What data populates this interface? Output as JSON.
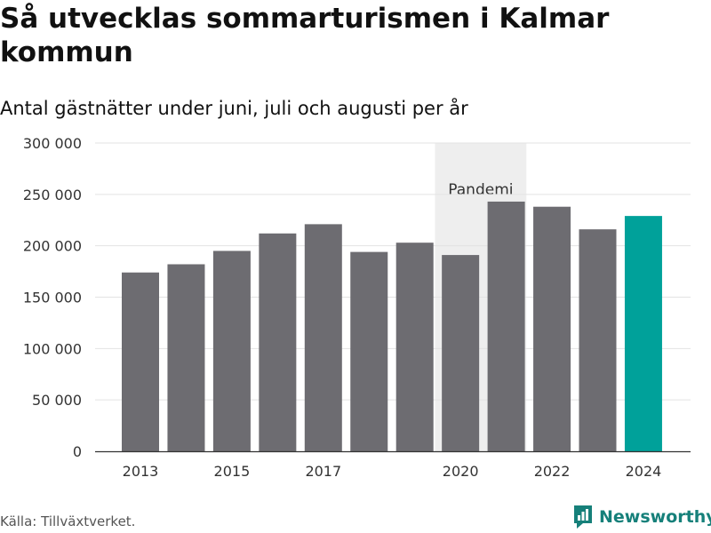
{
  "header": {
    "title": "Så utvecklas sommarturismen i Kalmar kommun",
    "subtitle": "Antal gästnätter under juni, juli och augusti per år"
  },
  "chart_data": {
    "type": "bar",
    "title": "Så utvecklas sommarturismen i Kalmar kommun",
    "subtitle": "Antal gästnätter under juni, juli och augusti per år",
    "categories": [
      "2013",
      "2014",
      "2015",
      "2016",
      "2017",
      "2018",
      "2019",
      "2020",
      "2021",
      "2022",
      "2023",
      "2024"
    ],
    "values": [
      174000,
      182000,
      195000,
      212000,
      221000,
      194000,
      203000,
      191000,
      243000,
      238000,
      216000,
      229000
    ],
    "x_tick_labels": [
      "2013",
      "2015",
      "2017",
      "2020",
      "2022",
      "2024"
    ],
    "y_tick_labels": [
      "0",
      "50 000",
      "100 000",
      "150 000",
      "200 000",
      "250 000",
      "300 000"
    ],
    "y_ticks": [
      0,
      50000,
      100000,
      150000,
      200000,
      250000,
      300000
    ],
    "ylim": [
      0,
      300000
    ],
    "xlabel": "",
    "ylabel": "",
    "grid": true,
    "highlight_category": "2024",
    "annotation": {
      "label": "Pandemi",
      "start_category": "2020",
      "end_category": "2021"
    },
    "colors": {
      "bar": "#6d6c71",
      "highlight": "#00a19a",
      "band": "#eeeeee",
      "grid": "#e3e3e3",
      "axis": "#333333"
    }
  },
  "footer": {
    "source": "Källa: Tillväxtverket.",
    "brand": "Newsworthy",
    "brand_icon": "bar-chart-logo-icon",
    "brand_color": "#16807a"
  }
}
